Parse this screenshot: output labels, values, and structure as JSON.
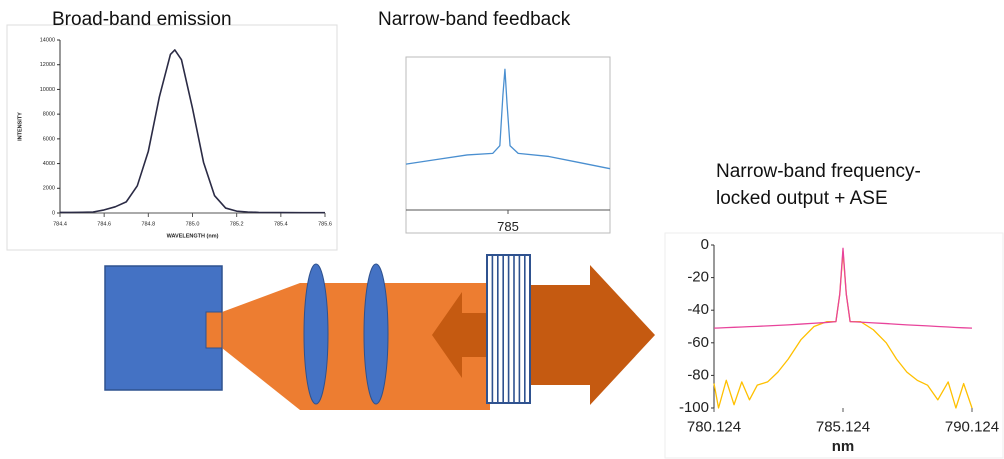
{
  "chart_data": [
    {
      "type": "line",
      "title": "Broad-band emission",
      "xlabel": "WAVELENGTH (nm)",
      "ylabel": "INTENSITY",
      "x": [
        784.4,
        784.45,
        784.5,
        784.55,
        784.6,
        784.65,
        784.7,
        784.75,
        784.8,
        784.85,
        784.9,
        784.92,
        784.95,
        785.0,
        785.05,
        785.1,
        785.15,
        785.2,
        785.25,
        785.3,
        785.4,
        785.5,
        785.6
      ],
      "series": [
        {
          "color": "#2b2b45",
          "values": [
            50,
            50,
            60,
            80,
            250,
            500,
            900,
            2200,
            5000,
            9400,
            12830,
            13200,
            12410,
            8475,
            4100,
            1400,
            400,
            150,
            80,
            50,
            40,
            30,
            30
          ]
        }
      ],
      "xlim": [
        784.4,
        785.6
      ],
      "xticks": [
        784.4,
        784.6,
        784.8,
        {
          "value": 785,
          "label": "785.0"
        },
        785.2,
        785.4,
        785.6
      ],
      "ylim": [
        0,
        14000
      ],
      "yticks": [
        0,
        2000,
        4000,
        6000,
        8000,
        10000,
        12000,
        14000
      ]
    },
    {
      "type": "line",
      "title": "Narrow-band feedback",
      "x": [
        784.0,
        784.3,
        784.6,
        784.85,
        784.92,
        784.95,
        784.97,
        784.99,
        785.02,
        785.1,
        785.4,
        785.7,
        786.0
      ],
      "series": [
        {
          "color": "#4a8fd0",
          "values": [
            0.3,
            0.33,
            0.36,
            0.37,
            0.42,
            0.75,
            0.92,
            0.7,
            0.42,
            0.37,
            0.35,
            0.31,
            0.27
          ]
        }
      ],
      "xlim": [
        784.0,
        786.0
      ],
      "xticks": [
        785
      ],
      "ylim": [
        0,
        1
      ]
    },
    {
      "type": "line",
      "title": "Narrow-band frequency-locked output + ASE",
      "xlabel": "nm",
      "x": [
        780.124,
        780.3,
        780.6,
        780.9,
        781.2,
        781.5,
        781.8,
        782.2,
        782.6,
        783,
        783.5,
        784,
        784.5,
        784.85,
        785.0,
        785.124,
        785.25,
        785.4,
        785.8,
        786.3,
        786.8,
        787.2,
        787.6,
        788,
        788.4,
        788.8,
        789.2,
        789.5,
        789.8,
        790.124
      ],
      "series": [
        {
          "color": "#ffc000",
          "values": [
            -85,
            -100,
            -83,
            -98,
            -84,
            -95,
            -86,
            -84,
            -78,
            -70,
            -58,
            -50,
            -47,
            -47,
            -30,
            -4,
            -30,
            -47,
            -47,
            -52,
            -60,
            -70,
            -78,
            -83,
            -86,
            -95,
            -84,
            -100,
            -85,
            -100
          ]
        },
        {
          "color": "#e8449b",
          "values": [
            -51,
            -50.9,
            -50.7,
            -50.5,
            -50.3,
            -50.1,
            -49.9,
            -49.6,
            -49.3,
            -49,
            -48.5,
            -48,
            -47.5,
            -47,
            -30,
            -2,
            -30,
            -47,
            -47.3,
            -47.8,
            -48.2,
            -48.6,
            -49,
            -49.3,
            -49.6,
            -50,
            -50.3,
            -50.6,
            -50.8,
            -51
          ]
        }
      ],
      "xlim": [
        780.124,
        790.124
      ],
      "xticks": [
        780.124,
        785.124,
        790.124
      ],
      "ylim": [
        -100,
        0
      ],
      "yticks": [
        0,
        -20,
        -40,
        -60,
        -80,
        -100
      ]
    }
  ]
}
